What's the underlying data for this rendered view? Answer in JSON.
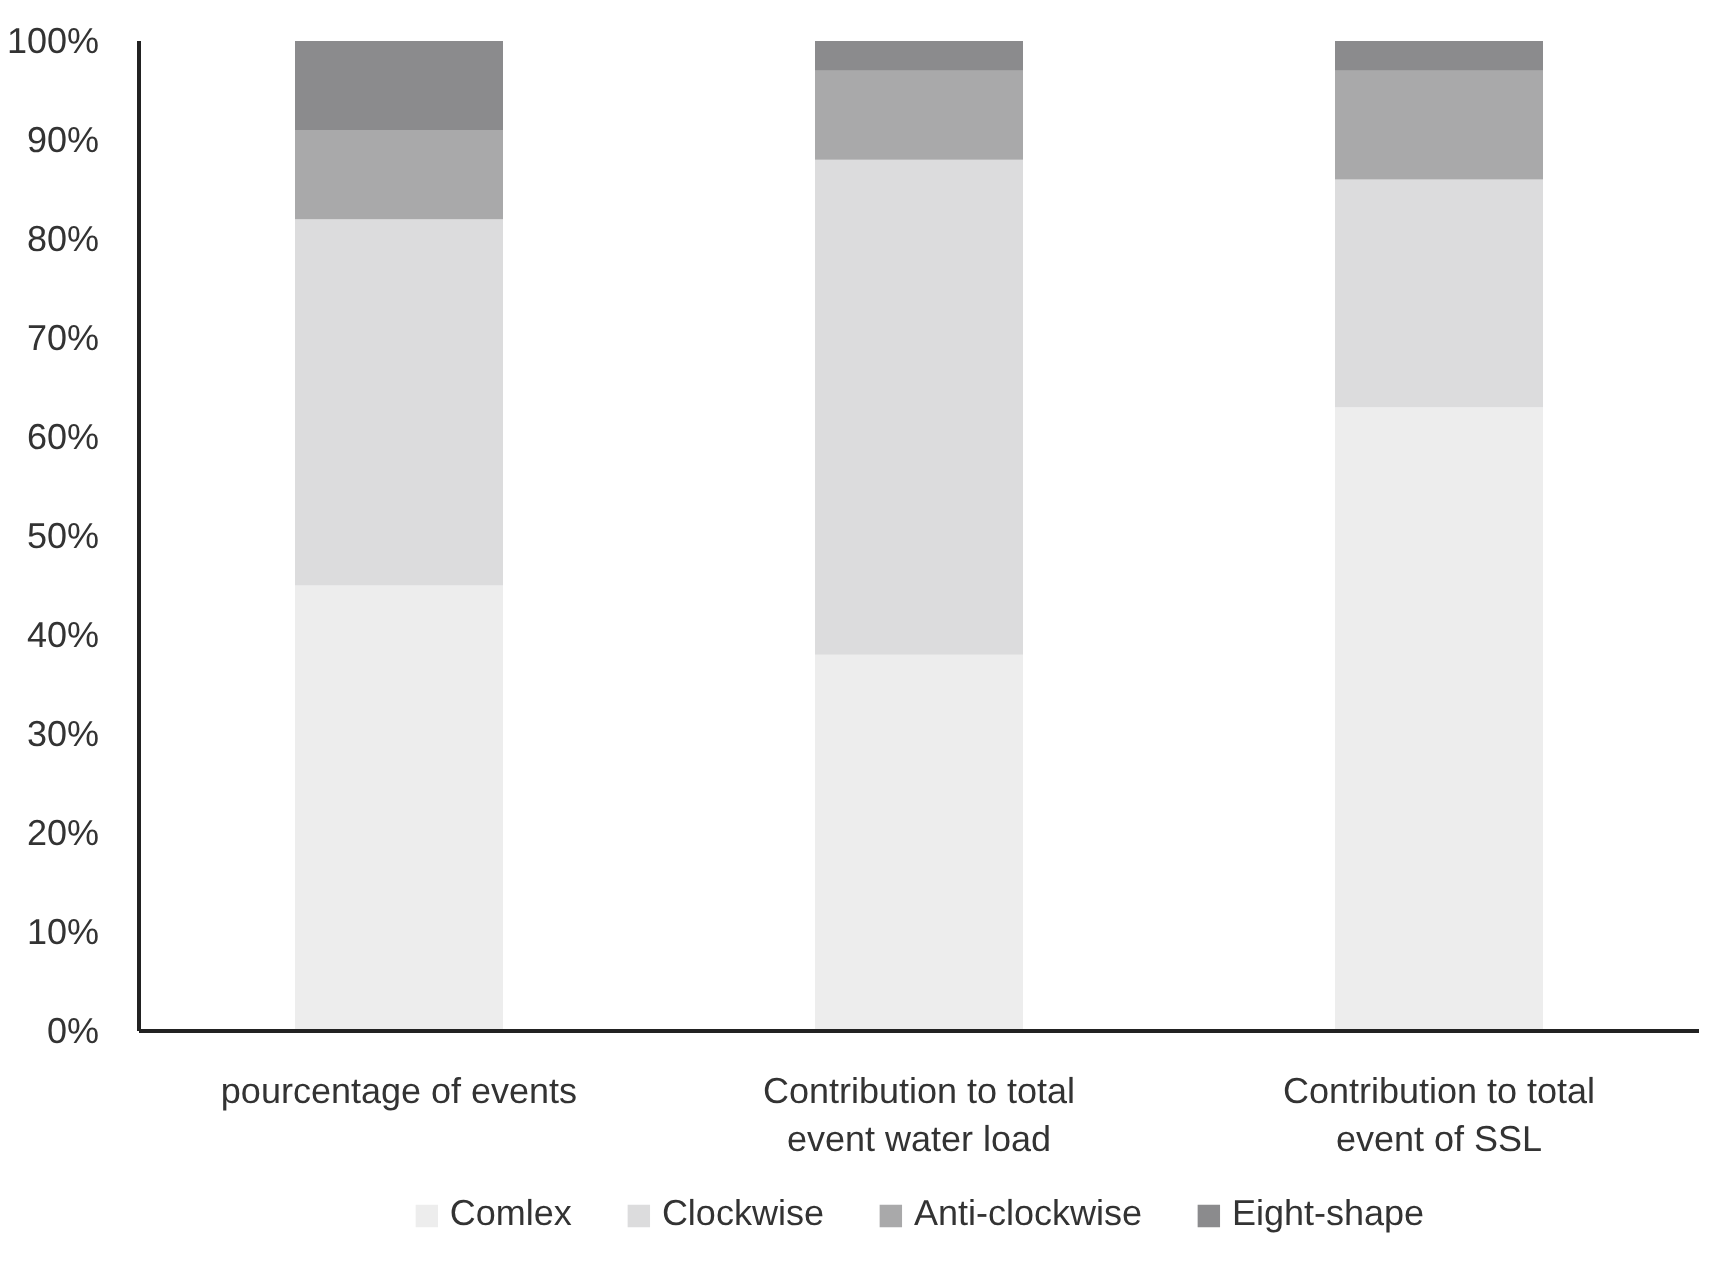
{
  "chart_data": {
    "type": "bar",
    "stacked": true,
    "categories": [
      "pourcentage of events",
      "Contribution to total event water load",
      "Contribution to total event of SSL"
    ],
    "series": [
      {
        "name": "Comlex",
        "color": "#ededed",
        "values": [
          45,
          38,
          63
        ]
      },
      {
        "name": "Clockwise",
        "color": "#dcdcdd",
        "values": [
          37,
          50,
          23
        ]
      },
      {
        "name": "Anti-clockwise",
        "color": "#a9a9aa",
        "values": [
          9,
          9,
          11
        ]
      },
      {
        "name": "Eight-shape",
        "color": "#8b8b8d",
        "values": [
          9,
          3,
          3
        ]
      }
    ],
    "ylim": [
      0,
      100
    ],
    "yticks": [
      {
        "value": 0,
        "label": "0%"
      },
      {
        "value": 10,
        "label": "10%"
      },
      {
        "value": 20,
        "label": "20%"
      },
      {
        "value": 30,
        "label": "30%"
      },
      {
        "value": 40,
        "label": "40%"
      },
      {
        "value": 50,
        "label": "50%"
      },
      {
        "value": 60,
        "label": "60%"
      },
      {
        "value": 70,
        "label": "70%"
      },
      {
        "value": 80,
        "label": "80%"
      },
      {
        "value": 90,
        "label": "90%"
      },
      {
        "value": 100,
        "label": "100%"
      }
    ],
    "grid": false,
    "legend": "bottom"
  }
}
